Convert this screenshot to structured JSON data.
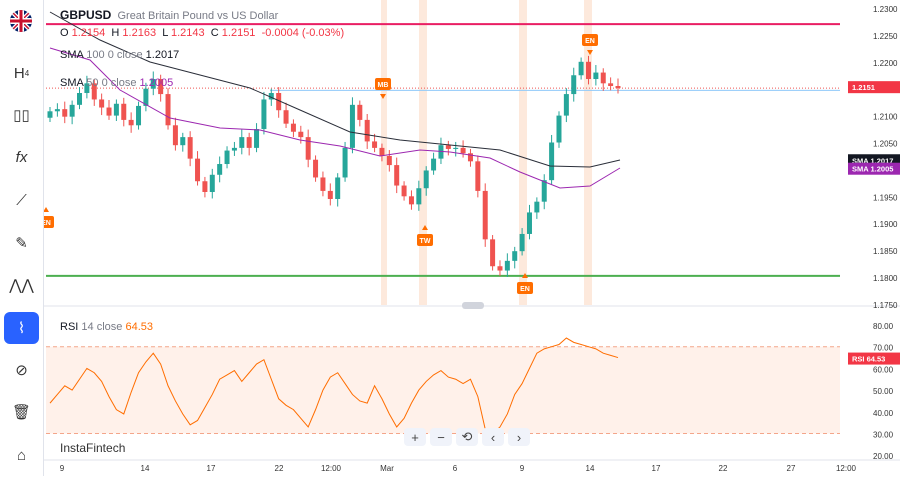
{
  "symbol": "GBPUSD",
  "description": "Great Britain Pound vs US Dollar",
  "ohlc": {
    "o_label": "O",
    "o": "1.2154",
    "h_label": "H",
    "h": "1.2163",
    "l_label": "L",
    "l": "1.2143",
    "c_label": "C",
    "c": "1.2151",
    "change": "-0.0004 (-0.03%)"
  },
  "sma100": {
    "label": "SMA",
    "period": "100",
    "source": "0",
    "field": "close",
    "value": "1.2017"
  },
  "sma50": {
    "label": "SMA",
    "period": "50",
    "source": "0",
    "field": "close",
    "value": "1.2005"
  },
  "rsi": {
    "label": "RSI",
    "period": "14",
    "field": "close",
    "value": "64.53"
  },
  "watermark": "InstaFintech",
  "price_labels": {
    "last": "1.2151",
    "sma100_tag": "SMA",
    "sma100_val": "1.2017",
    "sma50_tag": "SMA",
    "sma50_val": "1.2005",
    "rsi_tag": "RSI",
    "rsi_val": "64.53"
  },
  "price_axis": [
    "1.2300",
    "1.2250",
    "1.2200",
    "1.2150",
    "1.2100",
    "1.2050",
    "1.2000",
    "1.1950",
    "1.1900",
    "1.1850",
    "1.1800",
    "1.1750"
  ],
  "rsi_axis": [
    "80.00",
    "70.00",
    "60.00",
    "50.00",
    "40.00",
    "30.00",
    "20.00"
  ],
  "time_axis": [
    "9",
    "14",
    "17",
    "22",
    "12:00",
    "Mar",
    "6",
    "9",
    "14",
    "17",
    "22",
    "27",
    "12:00"
  ],
  "markers": [
    {
      "text": "MB",
      "dir": "down"
    },
    {
      "text": "TW",
      "dir": "up"
    },
    {
      "text": "EN",
      "dir": "up"
    },
    {
      "text": "EN",
      "dir": "down"
    },
    {
      "text": "EN",
      "dir": "up"
    }
  ],
  "colors": {
    "up": "#26a69a",
    "down": "#ef5350",
    "resistance": "#e91e63",
    "support": "#4caf50",
    "sma100": "#2a2e39",
    "sma50": "#9c27b0",
    "rsi": "#ff6d00",
    "marker": "#ff6d00",
    "accent": "#2962ff"
  },
  "toolbar_icons": [
    "flag-icon",
    "candles-icon",
    "bars-icon",
    "fx-icon",
    "line-tool-icon",
    "brush-icon",
    "pattern-icon",
    "magnet-icon",
    "eye-off-icon",
    "trash-icon",
    "lock-icon"
  ],
  "zoom_controls": [
    "+",
    "−",
    "⟲",
    "‹",
    "›"
  ]
}
